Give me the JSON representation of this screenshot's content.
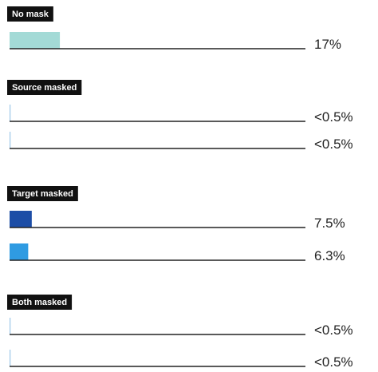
{
  "chart_data": {
    "type": "bar",
    "orientation": "horizontal",
    "xlim": [
      0,
      100
    ],
    "groups": [
      {
        "label": "No mask",
        "bars": [
          {
            "value": 17,
            "value_label": "17%",
            "color": "#a3dad6"
          }
        ]
      },
      {
        "label": "Source masked",
        "bars": [
          {
            "value": 0.2,
            "value_label": "<0.5%",
            "color": "#9cc8e8"
          },
          {
            "value": 0.2,
            "value_label": "<0.5%",
            "color": "#9cc8e8"
          }
        ]
      },
      {
        "label": "Target masked",
        "bars": [
          {
            "value": 7.5,
            "value_label": "7.5%",
            "color": "#1c4da6"
          },
          {
            "value": 6.3,
            "value_label": "6.3%",
            "color": "#2f9be2"
          }
        ]
      },
      {
        "label": "Both masked",
        "bars": [
          {
            "value": 0.2,
            "value_label": "<0.5%",
            "color": "#9cc8e8"
          },
          {
            "value": 0.2,
            "value_label": "<0.5%",
            "color": "#9cc8e8"
          }
        ]
      }
    ]
  }
}
